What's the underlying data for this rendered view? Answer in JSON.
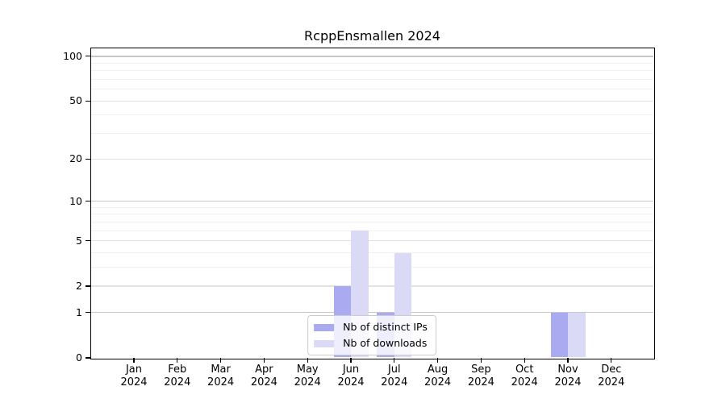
{
  "chart_data": {
    "type": "bar",
    "title": "RcppEnsmallen 2024",
    "categories": [
      {
        "month": "Jan",
        "year": "2024"
      },
      {
        "month": "Feb",
        "year": "2024"
      },
      {
        "month": "Mar",
        "year": "2024"
      },
      {
        "month": "Apr",
        "year": "2024"
      },
      {
        "month": "May",
        "year": "2024"
      },
      {
        "month": "Jun",
        "year": "2024"
      },
      {
        "month": "Jul",
        "year": "2024"
      },
      {
        "month": "Aug",
        "year": "2024"
      },
      {
        "month": "Sep",
        "year": "2024"
      },
      {
        "month": "Oct",
        "year": "2024"
      },
      {
        "month": "Nov",
        "year": "2024"
      },
      {
        "month": "Dec",
        "year": "2024"
      }
    ],
    "series": [
      {
        "name": "Nb of distinct IPs",
        "color": "#aaaaf0",
        "values": [
          0,
          0,
          0,
          0,
          0,
          2,
          1,
          0,
          0,
          0,
          1,
          0
        ]
      },
      {
        "name": "Nb of downloads",
        "color": "#dadaf6",
        "values": [
          0,
          0,
          0,
          0,
          0,
          6,
          4,
          0,
          0,
          0,
          1,
          0
        ]
      }
    ],
    "xlabel": "",
    "ylabel": "",
    "y_scale": "log1p",
    "ylim": [
      0,
      113
    ],
    "y_ticks": [
      0,
      1,
      2,
      5,
      10,
      20,
      50,
      100
    ],
    "y_minor_ticks": [
      3,
      4,
      6,
      7,
      8,
      9,
      30,
      40,
      60,
      70,
      80,
      90
    ],
    "grid": "horizontal",
    "legend": {
      "position": "bottom-center",
      "labels": [
        "Nb of distinct IPs",
        "Nb of downloads"
      ]
    }
  },
  "colors": {
    "background": "#ffffff",
    "axis": "#000000",
    "grid_major": "#c6c6c6",
    "grid_mid": "#e2e2e2",
    "grid_minor": "#f1f1f1",
    "legend_border": "#cccccc",
    "bar_distinct_ips": "#aaaaf0",
    "bar_downloads": "#dadaf6"
  }
}
